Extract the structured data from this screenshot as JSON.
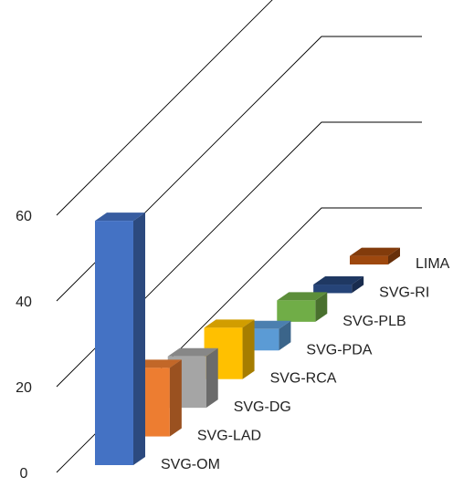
{
  "chart_data": {
    "type": "bar",
    "categories": [
      "SVG-OM",
      "SVG-LAD",
      "SVG-DG",
      "SVG-RCA",
      "SVG-PDA",
      "SVG-PLB",
      "SVG-RI",
      "LIMA"
    ],
    "values": [
      57,
      16,
      12,
      12,
      5,
      5,
      2,
      2
    ],
    "colors": [
      "#4472C4",
      "#ED7D31",
      "#A5A5A5",
      "#FFC000",
      "#5B9BD5",
      "#70AD47",
      "#264478",
      "#9E480E"
    ],
    "y_ticks": [
      0,
      20,
      40,
      60
    ],
    "ylim": [
      0,
      80
    ],
    "grid": true,
    "projection": "3d-oblique"
  }
}
